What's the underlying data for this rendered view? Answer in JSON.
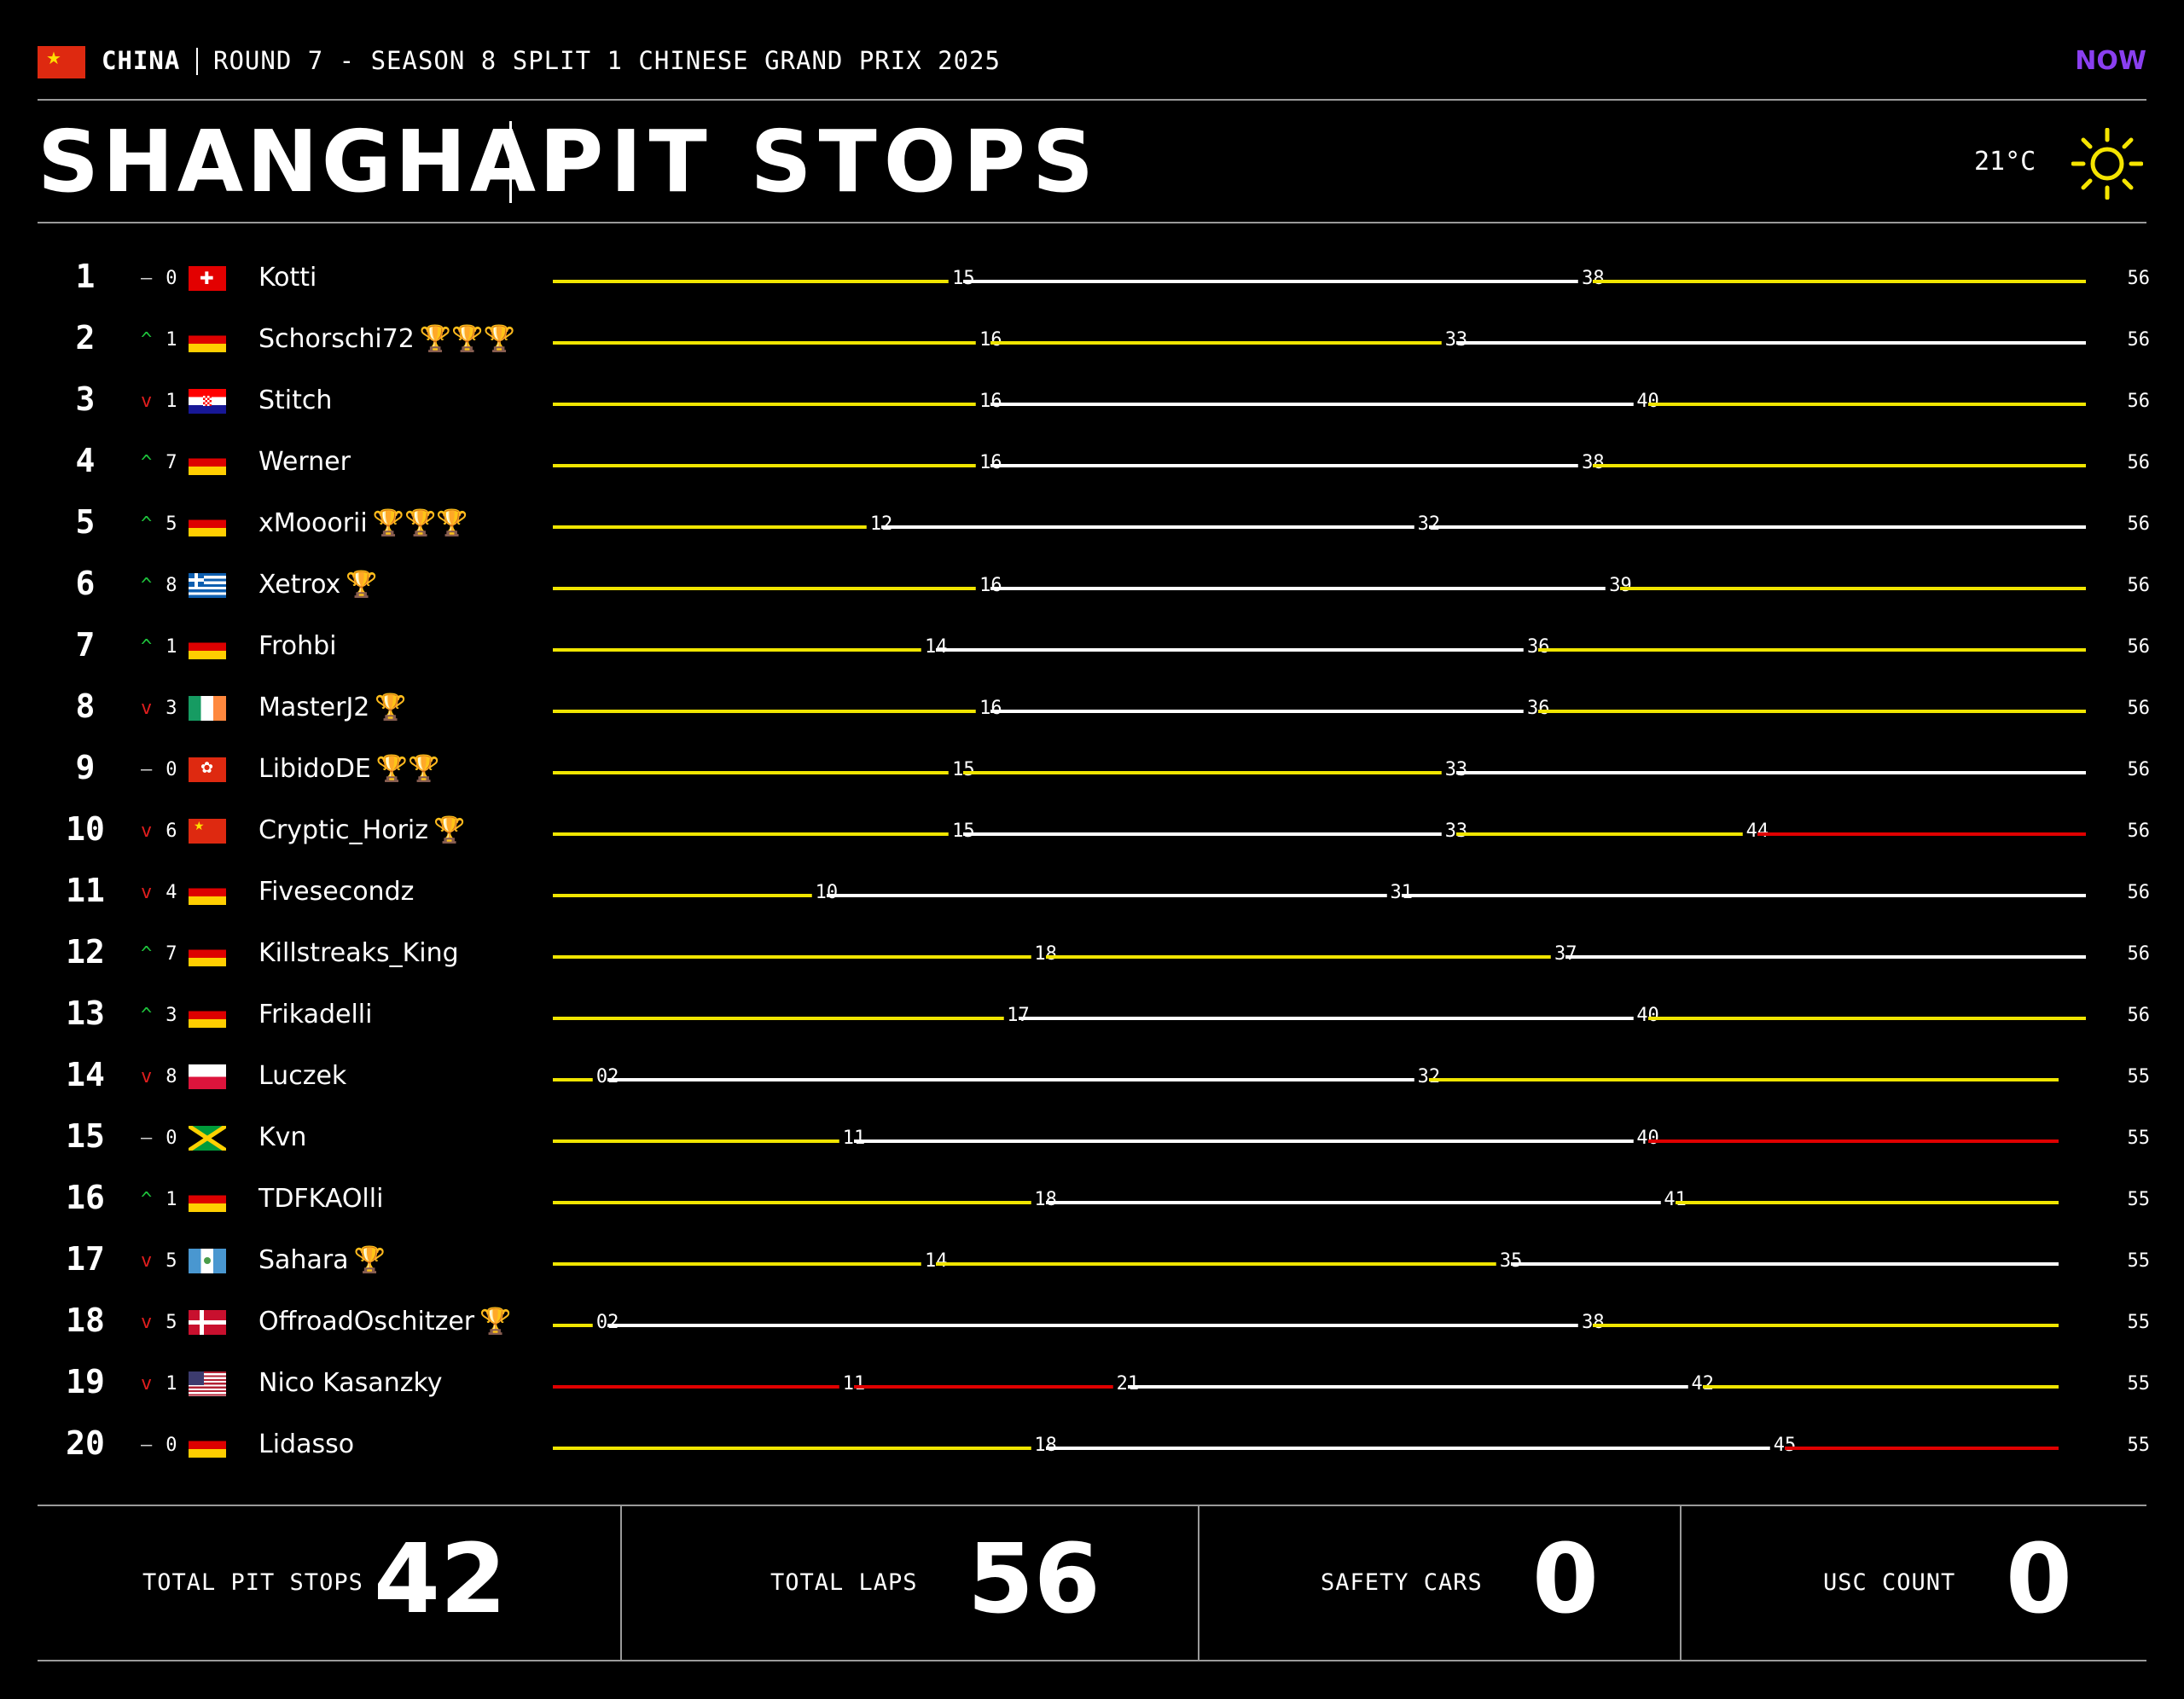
{
  "header": {
    "country": "CHINA",
    "round_text": "ROUND 7 - SEASON 8 SPLIT 1 CHINESE GRAND PRIX 2025",
    "logo_text": "NOW",
    "city": "SHANGHAI",
    "title": "PIT STOPS",
    "temperature": "21°C",
    "weather_icon": "sun-icon"
  },
  "colors": {
    "yellow": "#f0e500",
    "white": "#ffffff",
    "red": "#e00000",
    "up": "#1ec43c",
    "down": "#e01e1e",
    "neutral": "#cfcfcf"
  },
  "total_laps": 56,
  "rows": [
    {
      "pos": "1",
      "dir": "same",
      "change": "0",
      "flag": "CH",
      "name": "Kotti",
      "trophies": "",
      "segments": [
        {
          "end": 15,
          "c": "yellow"
        },
        {
          "end": 38,
          "c": "white"
        },
        {
          "end": 56,
          "c": "yellow"
        }
      ],
      "final": "56"
    },
    {
      "pos": "2",
      "dir": "up",
      "change": "1",
      "flag": "DE",
      "name": "Schorschi72",
      "trophies": "🏆🏆🏆",
      "segments": [
        {
          "end": 16,
          "c": "yellow"
        },
        {
          "end": 33,
          "c": "yellow"
        },
        {
          "end": 56,
          "c": "white"
        }
      ],
      "final": "56"
    },
    {
      "pos": "3",
      "dir": "down",
      "change": "1",
      "flag": "HR",
      "name": "Stitch",
      "trophies": "",
      "segments": [
        {
          "end": 16,
          "c": "yellow"
        },
        {
          "end": 40,
          "c": "white"
        },
        {
          "end": 56,
          "c": "yellow"
        }
      ],
      "final": "56"
    },
    {
      "pos": "4",
      "dir": "up",
      "change": "7",
      "flag": "DE",
      "name": "Werner",
      "trophies": "",
      "segments": [
        {
          "end": 16,
          "c": "yellow"
        },
        {
          "end": 38,
          "c": "white"
        },
        {
          "end": 56,
          "c": "yellow"
        }
      ],
      "final": "56"
    },
    {
      "pos": "5",
      "dir": "up",
      "change": "5",
      "flag": "DE",
      "name": "xMooorii",
      "trophies": "🏆🏆🏆",
      "segments": [
        {
          "end": 12,
          "c": "yellow"
        },
        {
          "end": 32,
          "c": "white"
        },
        {
          "end": 56,
          "c": "white"
        }
      ],
      "final": "56"
    },
    {
      "pos": "6",
      "dir": "up",
      "change": "8",
      "flag": "GR",
      "name": "Xetrox",
      "trophies": "🏆",
      "segments": [
        {
          "end": 16,
          "c": "yellow"
        },
        {
          "end": 39,
          "c": "white"
        },
        {
          "end": 56,
          "c": "yellow"
        }
      ],
      "final": "56"
    },
    {
      "pos": "7",
      "dir": "up",
      "change": "1",
      "flag": "DE",
      "name": "Frohbi",
      "trophies": "",
      "segments": [
        {
          "end": 14,
          "c": "yellow"
        },
        {
          "end": 36,
          "c": "white"
        },
        {
          "end": 56,
          "c": "yellow"
        }
      ],
      "final": "56"
    },
    {
      "pos": "8",
      "dir": "down",
      "change": "3",
      "flag": "IE",
      "name": "MasterJ2",
      "trophies": "🏆",
      "segments": [
        {
          "end": 16,
          "c": "yellow"
        },
        {
          "end": 36,
          "c": "white"
        },
        {
          "end": 56,
          "c": "yellow"
        }
      ],
      "final": "56"
    },
    {
      "pos": "9",
      "dir": "same",
      "change": "0",
      "flag": "HK",
      "name": "LibidoDE",
      "trophies": "🏆🏆",
      "segments": [
        {
          "end": 15,
          "c": "yellow"
        },
        {
          "end": 33,
          "c": "yellow"
        },
        {
          "end": 56,
          "c": "white"
        }
      ],
      "final": "56"
    },
    {
      "pos": "10",
      "dir": "down",
      "change": "6",
      "flag": "CN",
      "name": "Cryptic_Horiz",
      "trophies": "🏆",
      "segments": [
        {
          "end": 15,
          "c": "yellow"
        },
        {
          "end": 33,
          "c": "white"
        },
        {
          "end": 44,
          "c": "yellow"
        },
        {
          "end": 56,
          "c": "red"
        }
      ],
      "final": "56"
    },
    {
      "pos": "11",
      "dir": "down",
      "change": "4",
      "flag": "DE",
      "name": "Fivesecondz",
      "trophies": "",
      "segments": [
        {
          "end": 10,
          "c": "yellow"
        },
        {
          "end": 31,
          "c": "white"
        },
        {
          "end": 56,
          "c": "white"
        }
      ],
      "final": "56"
    },
    {
      "pos": "12",
      "dir": "up",
      "change": "7",
      "flag": "DE",
      "name": "Killstreaks_King",
      "trophies": "",
      "segments": [
        {
          "end": 18,
          "c": "yellow"
        },
        {
          "end": 37,
          "c": "yellow"
        },
        {
          "end": 56,
          "c": "white"
        }
      ],
      "final": "56"
    },
    {
      "pos": "13",
      "dir": "up",
      "change": "3",
      "flag": "DE",
      "name": "Frikadelli",
      "trophies": "",
      "segments": [
        {
          "end": 17,
          "c": "yellow"
        },
        {
          "end": 40,
          "c": "white"
        },
        {
          "end": 56,
          "c": "yellow"
        }
      ],
      "final": "56"
    },
    {
      "pos": "14",
      "dir": "down",
      "change": "8",
      "flag": "PL",
      "name": "Luczek",
      "trophies": "",
      "segments": [
        {
          "end": 2,
          "c": "yellow",
          "label": "02"
        },
        {
          "end": 32,
          "c": "white"
        },
        {
          "end": 55,
          "c": "yellow"
        }
      ],
      "final": "55"
    },
    {
      "pos": "15",
      "dir": "same",
      "change": "0",
      "flag": "JM",
      "name": "Kvn",
      "trophies": "",
      "segments": [
        {
          "end": 11,
          "c": "yellow"
        },
        {
          "end": 40,
          "c": "white"
        },
        {
          "end": 55,
          "c": "red"
        }
      ],
      "final": "55"
    },
    {
      "pos": "16",
      "dir": "up",
      "change": "1",
      "flag": "DE",
      "name": "TDFKAOlli",
      "trophies": "",
      "segments": [
        {
          "end": 18,
          "c": "yellow"
        },
        {
          "end": 41,
          "c": "white"
        },
        {
          "end": 55,
          "c": "yellow"
        }
      ],
      "final": "55"
    },
    {
      "pos": "17",
      "dir": "down",
      "change": "5",
      "flag": "GT",
      "name": "Sahara",
      "trophies": "🏆",
      "segments": [
        {
          "end": 14,
          "c": "yellow"
        },
        {
          "end": 35,
          "c": "yellow"
        },
        {
          "end": 55,
          "c": "white"
        }
      ],
      "final": "55"
    },
    {
      "pos": "18",
      "dir": "down",
      "change": "5",
      "flag": "DK",
      "name": "OffroadOschitzer",
      "trophies": "🏆",
      "segments": [
        {
          "end": 2,
          "c": "yellow",
          "label": "02"
        },
        {
          "end": 38,
          "c": "white"
        },
        {
          "end": 55,
          "c": "yellow"
        }
      ],
      "final": "55"
    },
    {
      "pos": "19",
      "dir": "down",
      "change": "1",
      "flag": "US",
      "name": "Nico Kasanzky",
      "trophies": "",
      "segments": [
        {
          "end": 11,
          "c": "red"
        },
        {
          "end": 21,
          "c": "red"
        },
        {
          "end": 42,
          "c": "white"
        },
        {
          "end": 55,
          "c": "yellow"
        }
      ],
      "final": "55"
    },
    {
      "pos": "20",
      "dir": "same",
      "change": "0",
      "flag": "DE",
      "name": "Lidasso",
      "trophies": "",
      "segments": [
        {
          "end": 18,
          "c": "yellow"
        },
        {
          "end": 45,
          "c": "white"
        },
        {
          "end": 55,
          "c": "red"
        }
      ],
      "final": "55"
    }
  ],
  "stats": [
    {
      "label": "TOTAL PIT STOPS",
      "value": "42"
    },
    {
      "label": "TOTAL LAPS",
      "value": "56"
    },
    {
      "label": "SAFETY CARS",
      "value": "0"
    },
    {
      "label": "USC COUNT",
      "value": "0"
    }
  ]
}
